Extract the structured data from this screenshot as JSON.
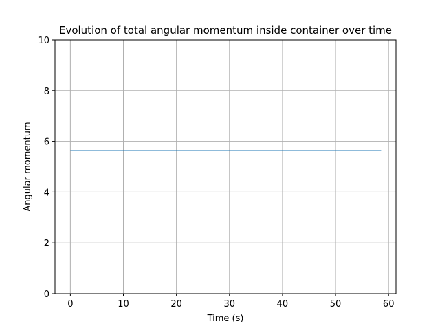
{
  "chart_data": {
    "type": "line",
    "title": "Evolution of total angular momentum inside container over time",
    "xlabel": "Time (s)",
    "ylabel": "Angular momentum",
    "xlim": [
      -2.9,
      61.4
    ],
    "ylim": [
      0,
      10
    ],
    "xticks": [
      0,
      10,
      20,
      30,
      40,
      50,
      60
    ],
    "yticks": [
      0,
      2,
      4,
      6,
      8,
      10
    ],
    "grid": true,
    "legend": "none",
    "colors": {
      "line": "#1f77b4",
      "grid": "#b0b0b0",
      "axes": "#000000"
    },
    "series": [
      {
        "x": [
          0,
          10,
          20,
          30,
          40,
          50,
          58.6
        ],
        "values": [
          5.63,
          5.63,
          5.63,
          5.63,
          5.63,
          5.63,
          5.63
        ]
      }
    ]
  }
}
